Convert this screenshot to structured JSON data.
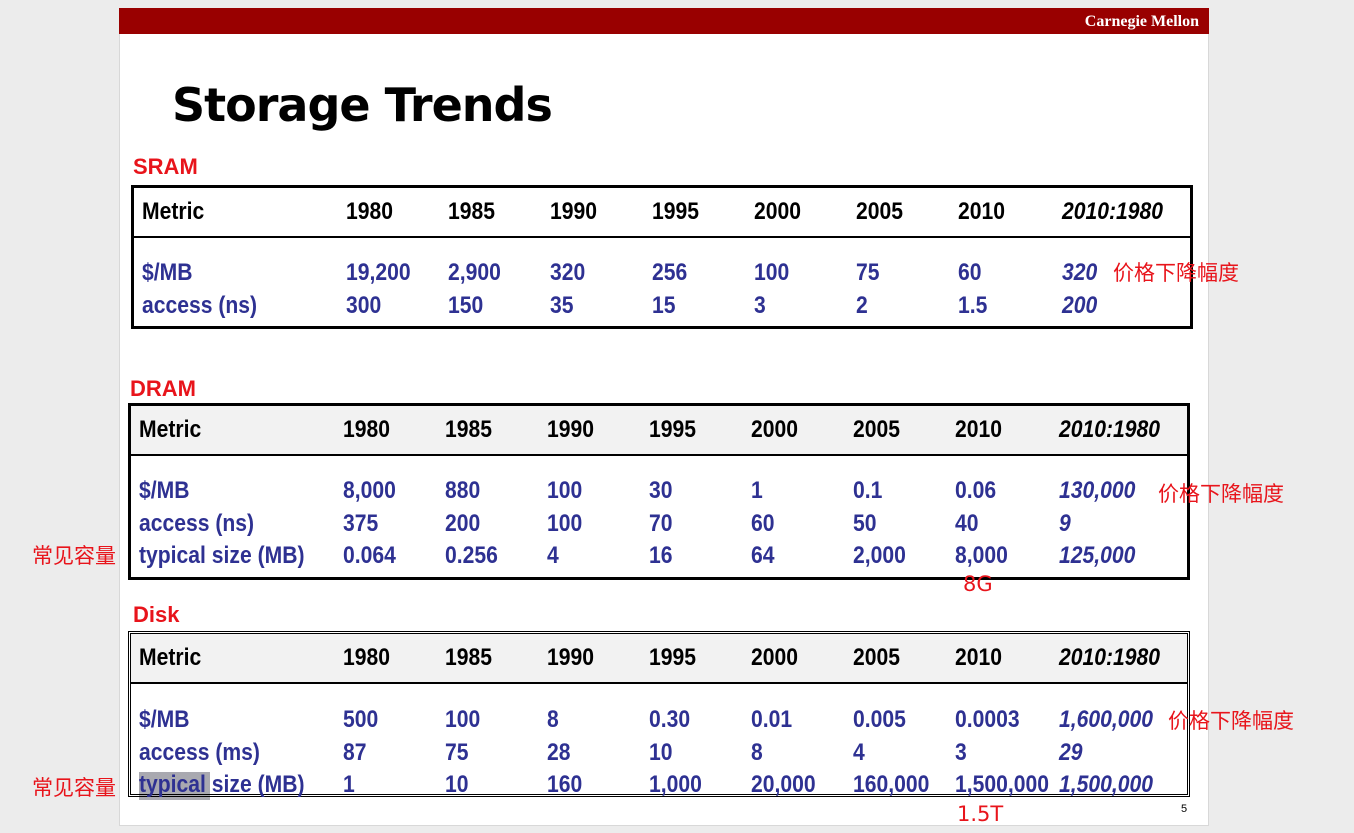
{
  "header": {
    "brand": "Carnegie Mellon"
  },
  "title": "Storage Trends",
  "sections": [
    {
      "label": "SRAM",
      "columns": [
        "Metric",
        "1980",
        "1985",
        "1990",
        "1995",
        "2000",
        "2005",
        "2010",
        "2010:1980"
      ],
      "rows": [
        [
          "$/MB",
          "19,200",
          "2,900",
          "320",
          "256",
          "100",
          "75",
          "60",
          "320"
        ],
        [
          "access (ns)",
          "300",
          "150",
          "35",
          "15",
          "3",
          "2",
          "1.5",
          "200"
        ]
      ]
    },
    {
      "label": "DRAM",
      "columns": [
        "Metric",
        "1980",
        "1985",
        "1990",
        "1995",
        "2000",
        "2005",
        "2010",
        "2010:1980"
      ],
      "rows": [
        [
          "$/MB",
          "8,000",
          "880",
          "100",
          "30",
          "1",
          "0.1",
          "0.06",
          "130,000"
        ],
        [
          "access (ns)",
          "375",
          "200",
          "100",
          "70",
          "60",
          "50",
          "40",
          "9"
        ],
        [
          "typical size (MB)",
          "0.064",
          "0.256",
          "4",
          "16",
          "64",
          "2,000",
          "8,000",
          "125,000"
        ]
      ]
    },
    {
      "label": "Disk",
      "columns": [
        "Metric",
        "1980",
        "1985",
        "1990",
        "1995",
        "2000",
        "2005",
        "2010",
        "2010:1980"
      ],
      "rows": [
        [
          "$/MB",
          "500",
          "100",
          "8",
          "0.30",
          "0.01",
          "0.005",
          "0.0003",
          "1,600,000"
        ],
        [
          "access (ms)",
          "87",
          "75",
          "28",
          "10",
          "8",
          "4",
          "3",
          "29"
        ],
        [
          "typical size (MB)",
          "1",
          "10",
          "160",
          "1,000",
          "20,000",
          "160,000",
          "1,500,000",
          "1,500,000"
        ]
      ]
    }
  ],
  "annotations": [
    "价格下降幅度",
    "价格下降幅度",
    "常见容量",
    "8G",
    "价格下降幅度",
    "常见容量",
    "1.5T"
  ],
  "page_number": "5"
}
